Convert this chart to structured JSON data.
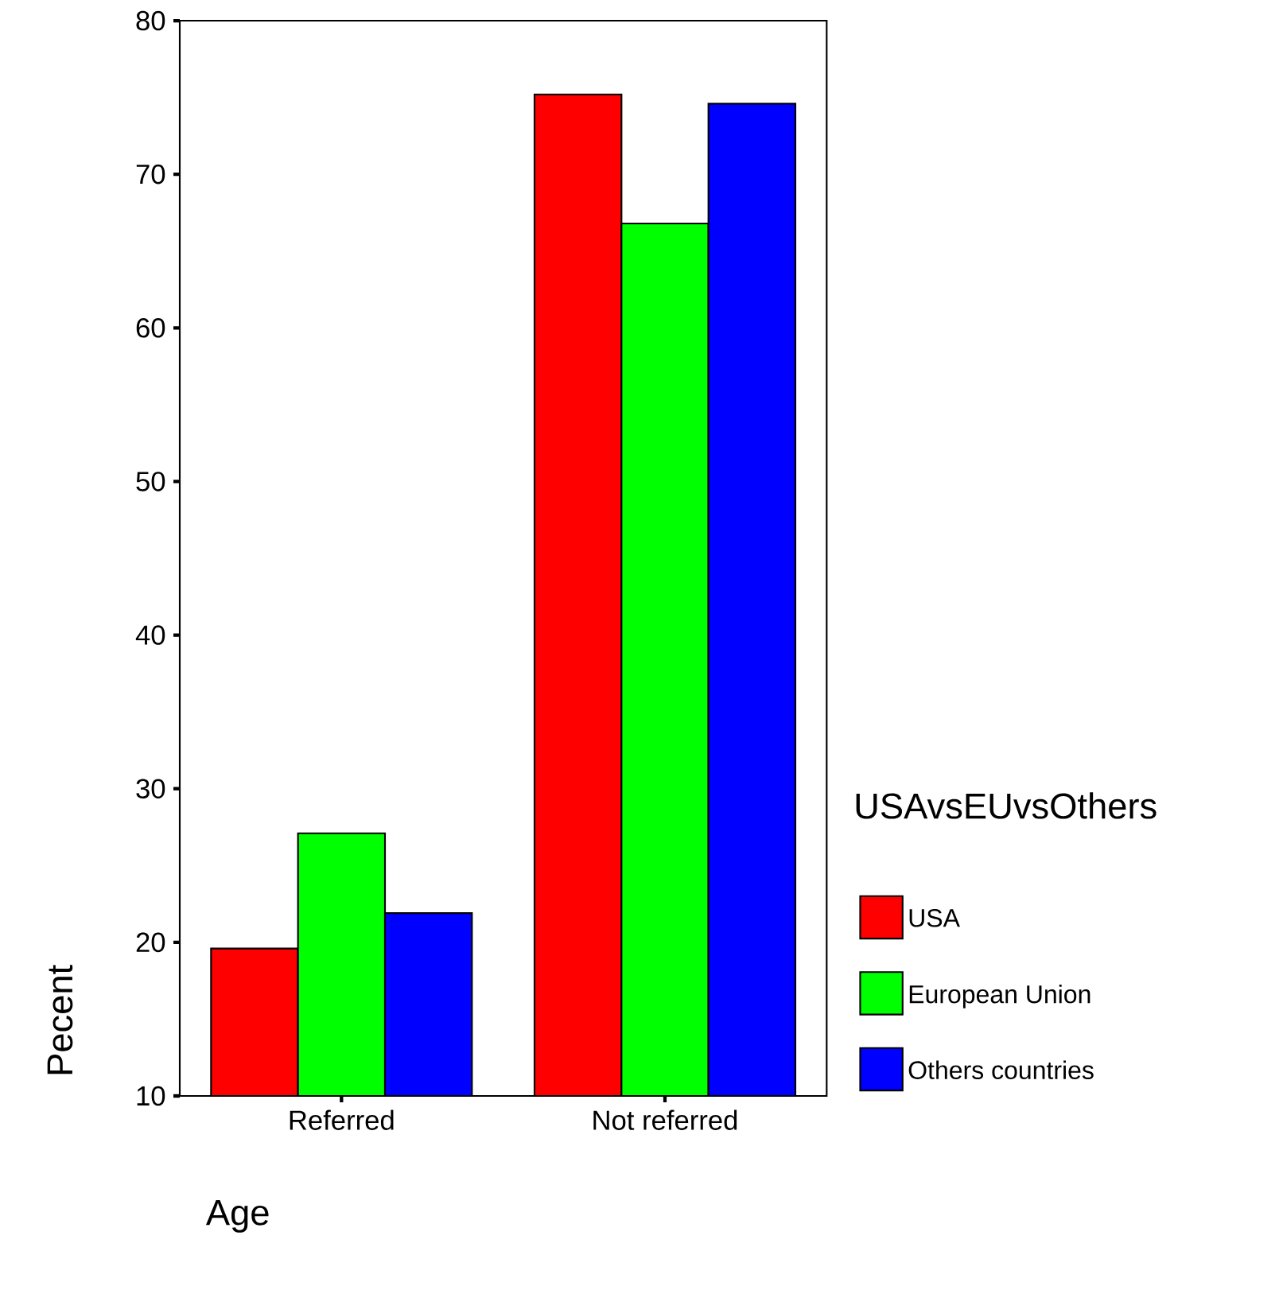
{
  "chart_data": {
    "type": "bar",
    "xlabel": "Age",
    "ylabel": "Pecent",
    "legend_title": "USAvsEUvsOthers",
    "categories": [
      "Referred",
      "Not referred"
    ],
    "series": [
      {
        "name": "USA",
        "color": "#ff0000",
        "values": [
          19.6,
          75.2
        ]
      },
      {
        "name": "European Union",
        "color": "#00ff00",
        "values": [
          27.1,
          66.8
        ]
      },
      {
        "name": "Others countries",
        "color": "#0000ff",
        "values": [
          21.9,
          74.6
        ]
      }
    ],
    "ylim": [
      10,
      80
    ],
    "yticks": [
      10,
      20,
      30,
      40,
      50,
      60,
      70,
      80
    ],
    "legend": "right",
    "grid": false
  }
}
